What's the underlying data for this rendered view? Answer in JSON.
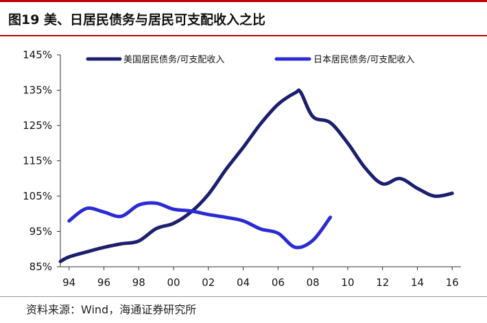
{
  "figure": {
    "title": "图19 美、日居民债务与居民可支配收入之比",
    "source": "资料来源：Wind，海通证券研究所"
  },
  "chart_data": {
    "type": "line",
    "title": "图19 美、日居民债务与居民可支配收入之比",
    "xlabel": "",
    "ylabel": "",
    "x_tick_labels": [
      "94",
      "96",
      "98",
      "00",
      "02",
      "04",
      "06",
      "08",
      "10",
      "12",
      "14",
      "16"
    ],
    "y_tick_labels": [
      "85%",
      "95%",
      "105%",
      "115%",
      "125%",
      "135%",
      "145%"
    ],
    "x_range": [
      1993.5,
      2016.5
    ],
    "ylim": [
      85,
      145
    ],
    "grid": false,
    "legend_position": "top",
    "series": [
      {
        "name": "美国居民债务/可支配收入",
        "color": "#1c1f6e",
        "x": [
          1993.5,
          1994,
          1995,
          1996,
          1997,
          1998,
          1999,
          2000,
          2001,
          2002,
          2003,
          2004,
          2005,
          2006,
          2007,
          2007.3,
          2008,
          2009,
          2010,
          2011,
          2012,
          2013,
          2014,
          2015,
          2016
        ],
        "y": [
          86.5,
          87.8,
          89.2,
          90.5,
          91.5,
          92.3,
          95.8,
          97.3,
          100.5,
          105.5,
          112.5,
          118.8,
          125.5,
          131,
          134.3,
          134.4,
          127.5,
          125.8,
          120,
          113,
          108.5,
          110,
          107.2,
          105,
          105.8
        ]
      },
      {
        "name": "日本居民债务/可支配收入",
        "color": "#2b2bd6",
        "x": [
          1994,
          1995,
          1996,
          1997,
          1998,
          1999,
          2000,
          2001,
          2002,
          2003,
          2004,
          2005,
          2006,
          2007,
          2008,
          2009
        ],
        "y": [
          98,
          101.5,
          100.5,
          99.3,
          102.5,
          103,
          101.3,
          100.8,
          99.8,
          99,
          98,
          95.7,
          94.5,
          90.5,
          92.5,
          99
        ]
      }
    ]
  }
}
